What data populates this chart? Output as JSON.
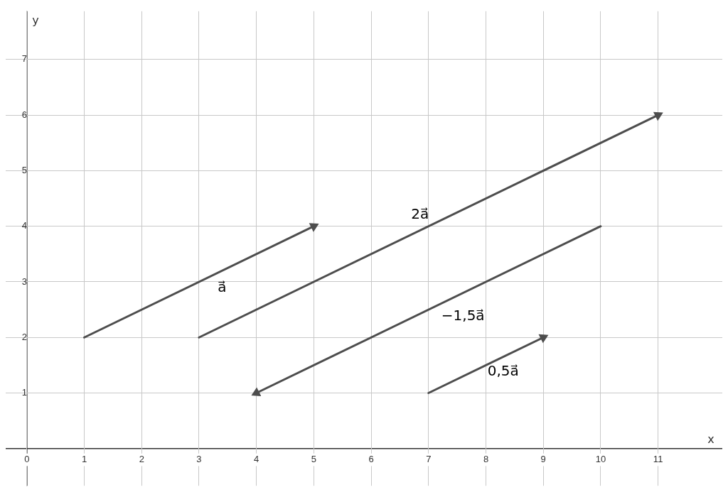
{
  "chart_data": {
    "type": "line",
    "xlabel": "x",
    "ylabel": "y",
    "xlim": [
      -0.37,
      12.12
    ],
    "ylim": [
      -0.67,
      7.87
    ],
    "xticks": [
      0,
      1,
      2,
      3,
      4,
      5,
      6,
      7,
      8,
      9,
      10,
      11
    ],
    "yticks": [
      1,
      2,
      3,
      4,
      5,
      6,
      7
    ],
    "grid": true,
    "legend": false,
    "line_style": "solid",
    "series": [
      {
        "color": "#4d4d4d",
        "x": [
          1,
          5
        ],
        "values": [
          2,
          4
        ]
      },
      {
        "color": "#4d4d4d",
        "x": [
          3,
          11
        ],
        "values": [
          2,
          6
        ]
      },
      {
        "color": "#4d4d4d",
        "x": [
          10,
          4
        ],
        "values": [
          4,
          1
        ]
      },
      {
        "color": "#4d4d4d",
        "x": [
          7,
          9
        ],
        "values": [
          1,
          2
        ]
      }
    ],
    "annotations": [
      {
        "text": "a⃗",
        "x": 3.4,
        "y": 3.2
      },
      {
        "text": "2a⃗",
        "x": 6.9,
        "y": 3.95
      },
      {
        "text": "−1,5a⃗",
        "x": 7.6,
        "y": 2.8
      },
      {
        "text": "0,5a⃗",
        "x": 8.3,
        "y": 1.65
      }
    ]
  }
}
